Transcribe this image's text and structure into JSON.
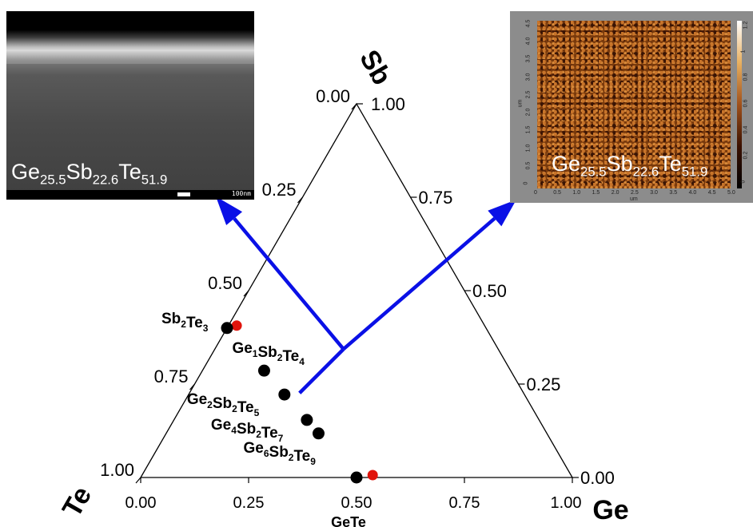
{
  "corner_labels": {
    "top": "Sb",
    "left": "Te",
    "right": "Ge"
  },
  "sb_ticks": [
    "0.00",
    "0.25",
    "0.50",
    "0.75",
    "1.00"
  ],
  "ge_ticks": [
    "0.00",
    "0.25",
    "0.50",
    "0.75",
    "1.00"
  ],
  "te_ticks": [
    "0.00",
    "0.25",
    "0.50",
    "0.75",
    "1.00"
  ],
  "bottom_ticks": [
    "0.00",
    "0.25",
    "0.50",
    "0.75",
    "1.00"
  ],
  "bottom_extra_label": "GeTe",
  "top_extra_label": "1.00",
  "compounds": [
    {
      "name": "Sb2Te3",
      "parts": [
        [
          "Sb",
          "2"
        ],
        [
          "Te",
          "3"
        ]
      ],
      "ge": 0.0,
      "sb": 0.4
    },
    {
      "name": "Ge1Sb2Te4",
      "parts": [
        [
          "Ge",
          "1"
        ],
        [
          "Sb",
          "2"
        ],
        [
          "Te",
          "4"
        ]
      ],
      "ge": 0.143,
      "sb": 0.286
    },
    {
      "name": "Ge2Sb2Te5",
      "parts": [
        [
          "Ge",
          "2"
        ],
        [
          "Sb",
          "2"
        ],
        [
          "Te",
          "5"
        ]
      ],
      "ge": 0.222,
      "sb": 0.222
    },
    {
      "name": "Ge4Sb2Te7",
      "parts": [
        [
          "Ge",
          "4"
        ],
        [
          "Sb",
          "2"
        ],
        [
          "Te",
          "7"
        ]
      ],
      "ge": 0.308,
      "sb": 0.154
    },
    {
      "name": "Ge6Sb2Te9",
      "parts": [
        [
          "Ge",
          "6"
        ],
        [
          "Sb",
          "2"
        ],
        [
          "Te",
          "9"
        ]
      ],
      "ge": 0.353,
      "sb": 0.118
    },
    {
      "name": "GeTe",
      "parts": [],
      "ge": 0.5,
      "sb": 0.0
    }
  ],
  "red_points": [
    {
      "ge": 0.015,
      "sb": 0.4
    },
    {
      "ge": 0.53,
      "sb": 0.0
    }
  ],
  "sample_point": {
    "ge": 0.255,
    "sb": 0.226
  },
  "sem_inset": {
    "label_parts": [
      [
        "Ge",
        "25.5"
      ],
      [
        "Sb",
        "22.6"
      ],
      [
        "Te",
        "51.9"
      ]
    ],
    "scale_text": "100nm"
  },
  "afm_inset": {
    "label_parts": [
      [
        "Ge",
        "25.5"
      ],
      [
        "Sb",
        "22.6"
      ],
      [
        "Te",
        "51.9"
      ]
    ],
    "x_ticks": [
      "0",
      "0.5",
      "1.0",
      "1.5",
      "2.0",
      "2.5",
      "3.0",
      "3.5",
      "4.0",
      "4.5",
      "5.0"
    ],
    "x_unit": "um",
    "y_ticks": [
      "4.5",
      "4.0",
      "3.5",
      "3.0",
      "2.5",
      "2.0",
      "1.5",
      "1.0",
      "0.5",
      "0"
    ],
    "y_unit": "um",
    "cbar_ticks": [
      "1.2",
      "1",
      "0.8",
      "0.6",
      "0.4",
      "0.2",
      "0"
    ]
  },
  "colors": {
    "marker": "#000000",
    "red_marker": "#e0140c",
    "arrow": "#0a10e6",
    "axis": "#000000"
  }
}
